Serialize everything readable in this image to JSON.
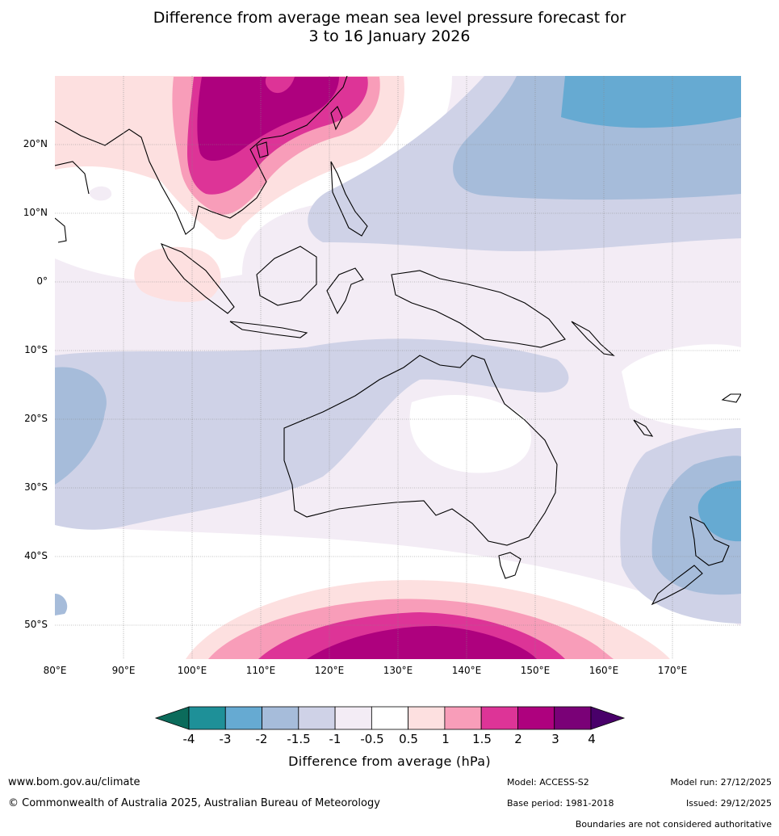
{
  "title": {
    "line1": "Difference from average mean sea level pressure forecast for",
    "line2": "3 to 16 January 2026"
  },
  "map": {
    "lat_labels": [
      "20°N",
      "10°N",
      "0°",
      "10°S",
      "20°S",
      "30°S",
      "40°S",
      "50°S"
    ],
    "lon_labels": [
      "80°E",
      "90°E",
      "100°E",
      "110°E",
      "120°E",
      "130°E",
      "140°E",
      "150°E",
      "160°E",
      "170°E"
    ]
  },
  "colorbar": {
    "label": "Difference from average (hPa)",
    "ticks": [
      "-4",
      "-3",
      "-2",
      "-1.5",
      "-1",
      "-0.5",
      "0.5",
      "1",
      "1.5",
      "2",
      "3",
      "4"
    ],
    "colors": {
      "under": "#0b6b5b",
      "bins": [
        "#1e9098",
        "#66aad2",
        "#a6bcda",
        "#cfd2e7",
        "#f3ecf5",
        "#ffffff",
        "#fde0e0",
        "#f89db9",
        "#dd3497",
        "#ae017e",
        "#7a0177"
      ],
      "over": "#49006a"
    }
  },
  "footer": {
    "website": "www.bom.gov.au/climate",
    "copyright": "© Commonwealth of Australia 2025, Australian Bureau of Meteorology",
    "model": "Model: ACCESS-S2",
    "model_run": "Model run: 27/12/2025",
    "base_period": "Base period: 1981-2018",
    "issued": "Issued: 29/12/2025",
    "disclaimer": "Boundaries are not considered authoritative"
  }
}
